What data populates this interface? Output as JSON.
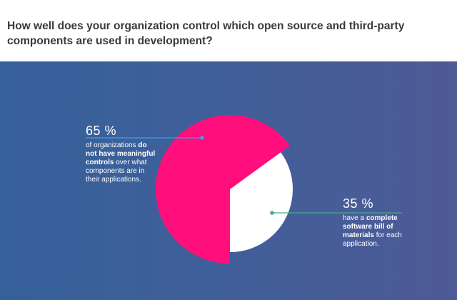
{
  "question": "How well does your organization control which open source and third-party components are used in development?",
  "colors": {
    "slice_no_controls": "#ff0f7b",
    "slice_sbom": "#ffffff",
    "leader_no_controls": "#3aa0e8",
    "leader_sbom": "#3fae8a",
    "background_left": "#36609a",
    "background_right": "#4f5a96"
  },
  "chart_data": {
    "type": "pie",
    "title": "How well does your organization control which open source and third-party components are used in development?",
    "slices": [
      {
        "key": "no_controls",
        "value": 65,
        "percent_label": "65 %",
        "text_before": "of organizations",
        "text_bold": "do not have meaningful controls",
        "text_after": "over what components are in their applications.",
        "color": "#ff0f7b"
      },
      {
        "key": "sbom",
        "value": 35,
        "percent_label": "35 %",
        "text_before": "have a",
        "text_bold": "complete software bill of materials",
        "text_after": "for each application.",
        "color": "#ffffff"
      }
    ]
  }
}
